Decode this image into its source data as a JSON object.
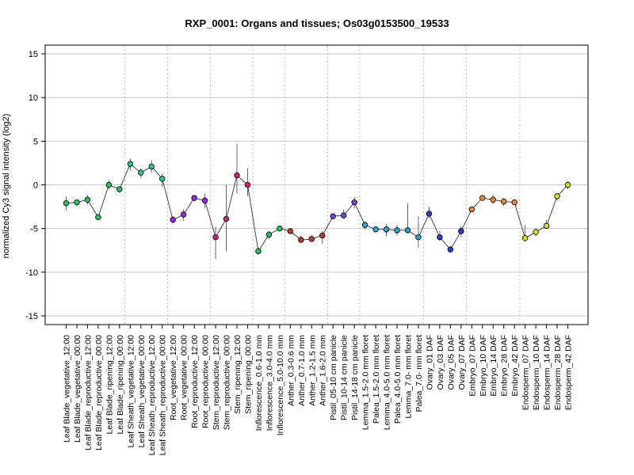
{
  "chart_data": {
    "type": "line",
    "title": "RXP_0001: Organs and tissues; Os03g0153500_19533",
    "xlabel": "",
    "ylabel": "normalized Cy3 signal intensity (log2)",
    "ylim": [
      -16,
      16
    ],
    "yticks": [
      -15,
      -10,
      -5,
      0,
      5,
      10,
      15
    ],
    "grid": "horizontal at y ticks; dotted vertical group separators",
    "categories": [
      "Leaf Blade_vegetative_12:00",
      "Leaf Blade_vegetative_00:00",
      "Leaf Blade_reproductive_12:00",
      "Leaf Blade_reproductive_00:00",
      "Leaf Blade_ripening_12:00",
      "Leaf Blade_ripening_00:00",
      "Leaf Sheath_vegetative_12:00",
      "Leaf Sheath_vegetative_00:00",
      "Leaf Sheath_reproductive_12:00",
      "Leaf Sheath_reproductive_00:00",
      "Root_vegetative_12:00",
      "Root_vegetative_00:00",
      "Root_reproductive_12:00",
      "Root_reproductive_00:00",
      "Stem_reproductive_12:00",
      "Stem_reproductive_00:00",
      "Stem_ripening_12:00",
      "Stem_ripening_00:00",
      "Inflorescence_0.6-1.0 mm",
      "Inflorescence_3.0-4.0 mm",
      "Inflorescence_5.0-10.0 mm",
      "Anther_0.3-0.6 mm",
      "Anther_0.7-1.0 mm",
      "Anther_1.2-1.5 mm",
      "Anther_1.6-2.0 mm",
      "Pistil_05-10 cm panicle",
      "Pistil_10-14 cm panicle",
      "Pistil_14-18 cm panicle",
      "Lemma_1.5-2.0 mm floret",
      "Palea_1.5-2.0 mm floret",
      "Lemma_4.0-5.0 mm floret",
      "Palea_4.0-5.0 mm floret",
      "Lemma_7.0- mm floret",
      "Palea_7.0- mm floret",
      "Ovary_01 DAF",
      "Ovary_03 DAF",
      "Ovary_05 DAF",
      "Ovary_07 DAF",
      "Embryo_07 DAF",
      "Embryo_10 DAF",
      "Embryo_14 DAF",
      "Embryo_28 DAF",
      "Embryo_42 DAF",
      "Endosperm_07 DAF",
      "Endosperm_10 DAF",
      "Endosperm_14 DAF",
      "Endosperm_28 DAF",
      "Endosperm_42 DAF"
    ],
    "values": [
      -2.1,
      -2.0,
      -1.7,
      -3.7,
      0.0,
      -0.5,
      2.4,
      1.4,
      2.1,
      0.7,
      -4.0,
      -3.4,
      -1.5,
      -1.8,
      -6.0,
      -3.9,
      1.1,
      0.0,
      -7.6,
      -5.7,
      -5.0,
      -5.3,
      -6.3,
      -6.2,
      -5.8,
      -3.6,
      -3.5,
      -2.0,
      -4.6,
      -5.1,
      -5.1,
      -5.2,
      -5.2,
      -6.0,
      -3.3,
      -6.0,
      -7.4,
      -5.3,
      -2.8,
      -1.5,
      -1.7,
      -1.9,
      -2.0,
      -6.1,
      -5.4,
      -4.7,
      -1.3,
      0.0
    ],
    "err_low": [
      -2.9,
      -2.5,
      -2.3,
      -4.0,
      -0.5,
      -0.9,
      1.6,
      0.8,
      1.4,
      -0.2,
      -4.4,
      -4.1,
      -1.9,
      -2.6,
      -8.5,
      -7.6,
      -1.0,
      -1.3,
      -8.0,
      -6.2,
      -5.3,
      -5.6,
      -6.6,
      -6.5,
      -6.8,
      -3.9,
      -3.9,
      -2.7,
      -5.1,
      -5.4,
      -5.9,
      -5.8,
      -5.5,
      -7.2,
      -3.8,
      -6.4,
      -7.7,
      -6.0,
      -3.0,
      -1.8,
      -2.2,
      -2.4,
      -2.3,
      -6.5,
      -5.9,
      -5.0,
      -1.8,
      -0.5
    ],
    "err_high": [
      -1.3,
      -1.7,
      -1.2,
      -3.4,
      0.5,
      -0.3,
      3.0,
      1.9,
      2.8,
      1.3,
      -3.6,
      -2.8,
      -1.2,
      -1.0,
      -4.8,
      0.0,
      4.7,
      1.9,
      -7.2,
      -5.3,
      -4.7,
      -5.0,
      -5.8,
      -5.7,
      -5.3,
      -3.3,
      -2.8,
      -1.4,
      -4.2,
      -4.8,
      -4.5,
      -4.6,
      -2.1,
      -3.6,
      -2.5,
      -5.3,
      -7.0,
      -4.7,
      -2.6,
      -1.2,
      -1.1,
      -1.5,
      -1.7,
      -4.6,
      -5.0,
      -4.0,
      -1.0,
      0.4
    ],
    "colors": [
      "#22c55e",
      "#22c55e",
      "#22c55e",
      "#22c55e",
      "#22c55e",
      "#22c55e",
      "#20c997",
      "#20c997",
      "#20c997",
      "#20c997",
      "#a020f0",
      "#a020f0",
      "#a020f0",
      "#a020f0",
      "#d0207a",
      "#d0207a",
      "#d0207a",
      "#d0207a",
      "#22c55e",
      "#22c55e",
      "#22c55e",
      "#c0392b",
      "#c0392b",
      "#c0392b",
      "#c0392b",
      "#7b3fe4",
      "#7b3fe4",
      "#7b3fe4",
      "#2aa3d0",
      "#2aa3d0",
      "#2aa3d0",
      "#2aa3d0",
      "#2aa3d0",
      "#2aa3d0",
      "#2a3fd0",
      "#2a3fd0",
      "#2a3fd0",
      "#2a3fd0",
      "#e6892a",
      "#e6892a",
      "#e6892a",
      "#e6892a",
      "#e6892a",
      "#d8e020",
      "#d8e020",
      "#d8e020",
      "#d8e020",
      "#d8e020"
    ],
    "group_separators_after_index": [
      5,
      9,
      13,
      17,
      20,
      24,
      27,
      33,
      37,
      42
    ]
  }
}
